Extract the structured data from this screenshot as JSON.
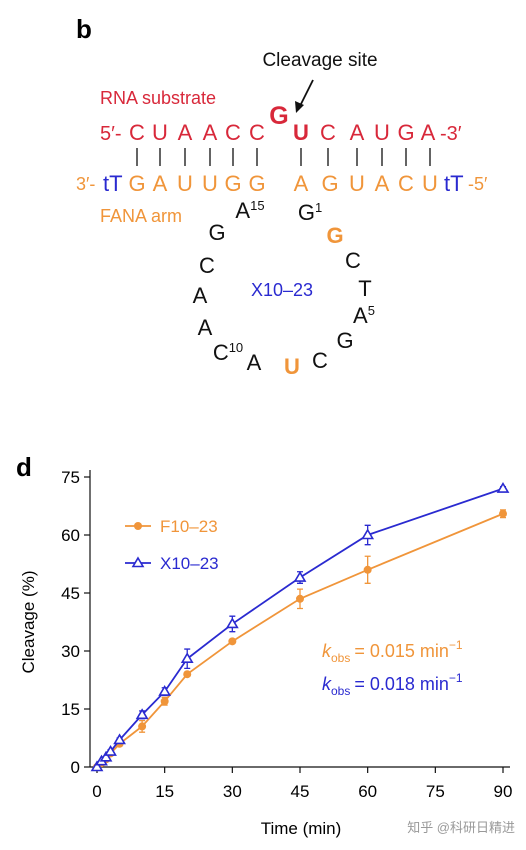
{
  "diagram": {
    "panel_label": "b",
    "cleavage_label": "Cleavage site",
    "rna_label": "RNA substrate",
    "fana_label": "FANA arm",
    "top_strand": {
      "five_prime": "5′-",
      "bases": [
        "C",
        "U",
        "A",
        "A",
        "C",
        "C",
        "G",
        "U",
        "C",
        "A",
        "U",
        "G",
        "A"
      ],
      "three_prime": "-3′"
    },
    "bottom_strand": {
      "three_prime": "3′-",
      "cap_left": "tT",
      "bases": [
        "G",
        "A",
        "U",
        "U",
        "G",
        "G",
        "A",
        "G",
        "U",
        "A",
        "C",
        "U"
      ],
      "cap_right": "tT",
      "five_prime": "-5′"
    },
    "loop": [
      {
        "base": "G",
        "number": 1
      },
      {
        "base": "G"
      },
      {
        "base": "C"
      },
      {
        "base": "T"
      },
      {
        "base": "A",
        "number": 5
      },
      {
        "base": "G"
      },
      {
        "base": "C"
      },
      {
        "base": "U"
      },
      {
        "base": "A"
      },
      {
        "base": "C",
        "number": 10
      },
      {
        "base": "A"
      },
      {
        "base": "A"
      },
      {
        "base": "C"
      },
      {
        "base": "G"
      },
      {
        "base": "A",
        "number": 15
      }
    ],
    "center_label": "X10–23"
  },
  "chart_data": {
    "type": "scatter",
    "panel_label": "d",
    "x_label": "Time (min)",
    "y_label": "Cleavage (%)",
    "xlim": [
      0,
      90
    ],
    "xticks": [
      0,
      15,
      30,
      45,
      60,
      75,
      90
    ],
    "ylim": [
      0,
      75
    ],
    "yticks": [
      0,
      15,
      30,
      45,
      60,
      75
    ],
    "legend": "upper left",
    "series": [
      {
        "name": "F10–23",
        "color": "#f0953a",
        "marker": "circle",
        "x": [
          0,
          1,
          2,
          3,
          5,
          10,
          15,
          20,
          30,
          45,
          60,
          90
        ],
        "values": [
          0,
          1,
          2,
          3.5,
          6,
          10.5,
          17,
          24,
          32.5,
          43.5,
          51,
          65.5
        ],
        "errors": [
          0,
          0,
          0,
          0.5,
          0.5,
          1.5,
          1,
          0.5,
          0.5,
          2.5,
          3.5,
          1
        ]
      },
      {
        "name": "X10–23",
        "color": "#2a2ad0",
        "marker": "triangle",
        "x": [
          0,
          1,
          2,
          3,
          5,
          10,
          15,
          20,
          30,
          45,
          60,
          90
        ],
        "values": [
          0,
          1.5,
          2.5,
          4,
          7,
          13.5,
          19.5,
          28,
          37,
          49,
          60,
          72
        ],
        "errors": [
          0,
          0,
          0,
          0.5,
          0.5,
          1,
          1,
          2.5,
          2,
          1.5,
          2.5,
          0.5
        ]
      }
    ],
    "annotations": [
      {
        "k": "k",
        "sub": "obs",
        "text": "= 0.015 min",
        "sup": "−1",
        "color": "#f0953a"
      },
      {
        "k": "k",
        "sub": "obs",
        "text": "= 0.018 min",
        "sup": "−1",
        "color": "#2a2ad0"
      }
    ],
    "watermark": "知乎 @科研日精进"
  }
}
